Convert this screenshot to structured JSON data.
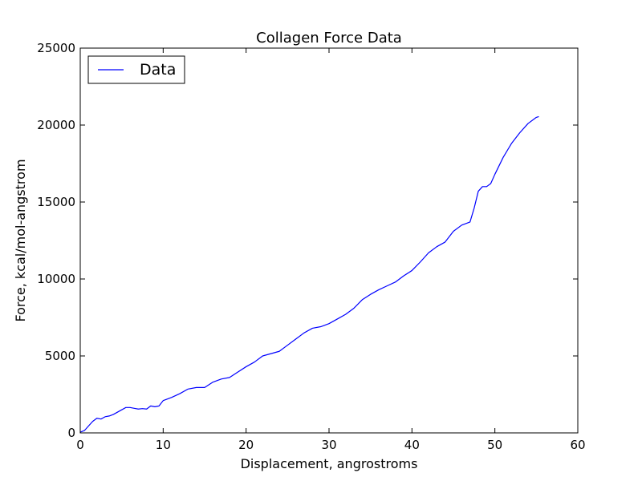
{
  "chart_data": {
    "type": "line",
    "title": "Collagen Force Data",
    "xlabel": "Displacement, angrostroms",
    "ylabel": "Force, kcal/mol-angstrom",
    "xlim": [
      0,
      60
    ],
    "ylim": [
      0,
      25000
    ],
    "xticks": [
      0,
      10,
      20,
      30,
      40,
      50,
      60
    ],
    "yticks": [
      0,
      5000,
      10000,
      15000,
      20000,
      25000
    ],
    "grid": false,
    "legend_position": "top-left",
    "series": [
      {
        "name": "Data",
        "color": "#0000ff",
        "x": [
          0,
          0.5,
          1,
          1.5,
          2,
          2.5,
          3,
          3.5,
          4,
          4.5,
          5,
          5.5,
          6,
          6.5,
          7,
          7.5,
          8,
          8.5,
          9,
          9.5,
          10,
          11,
          12,
          13,
          14,
          15,
          16,
          17,
          18,
          19,
          20,
          21,
          22,
          23,
          24,
          25,
          26,
          27,
          28,
          29,
          30,
          31,
          32,
          33,
          34,
          35,
          36,
          37,
          38,
          39,
          40,
          41,
          42,
          43,
          44,
          45,
          46,
          47,
          47.5,
          48,
          48.5,
          49,
          49.5,
          50,
          51,
          52,
          53,
          54,
          55,
          55.3
        ],
        "y": [
          50,
          150,
          450,
          750,
          950,
          900,
          1050,
          1100,
          1200,
          1350,
          1500,
          1650,
          1650,
          1600,
          1550,
          1580,
          1550,
          1750,
          1700,
          1750,
          2100,
          2300,
          2550,
          2850,
          2950,
          2950,
          3300,
          3500,
          3600,
          3950,
          4300,
          4600,
          5000,
          5150,
          5300,
          5700,
          6100,
          6500,
          6800,
          6900,
          7100,
          7400,
          7700,
          8100,
          8650,
          9000,
          9300,
          9550,
          9800,
          10200,
          10550,
          11100,
          11700,
          12100,
          12400,
          13100,
          13500,
          13700,
          14600,
          15700,
          16000,
          16000,
          16200,
          16800,
          17900,
          18800,
          19500,
          20100,
          20500,
          20550
        ]
      }
    ]
  }
}
